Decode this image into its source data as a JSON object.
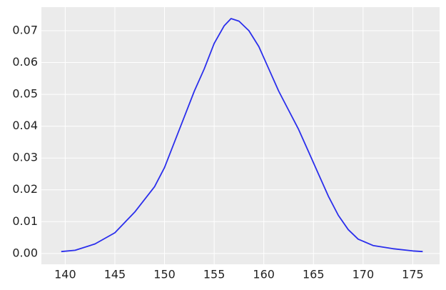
{
  "chart_data": {
    "type": "line",
    "x": [
      139.6,
      141,
      143,
      145,
      147,
      149,
      150,
      151,
      152,
      153,
      154,
      155,
      156,
      156.7,
      157.5,
      158.5,
      159.5,
      160.5,
      161.5,
      162.5,
      163.5,
      164.5,
      165.5,
      166.5,
      167.5,
      168.5,
      169.5,
      171,
      173,
      175,
      176
    ],
    "values": [
      0.0006,
      0.001,
      0.003,
      0.0065,
      0.013,
      0.021,
      0.027,
      0.035,
      0.043,
      0.051,
      0.058,
      0.066,
      0.0715,
      0.0738,
      0.073,
      0.07,
      0.065,
      0.058,
      0.051,
      0.045,
      0.039,
      0.032,
      0.025,
      0.018,
      0.012,
      0.0075,
      0.0045,
      0.0025,
      0.0015,
      0.0008,
      0.0006
    ],
    "color": "#2a2eec",
    "xlim": [
      137.6,
      177.7
    ],
    "xticks": [
      140,
      145,
      150,
      155,
      160,
      165,
      170,
      175
    ],
    "ylim": [
      -0.0034,
      0.0774
    ],
    "yticks": [
      {
        "value": 0,
        "label": "0.00"
      },
      {
        "value": 0.01,
        "label": "0.01"
      },
      {
        "value": 0.02,
        "label": "0.02"
      },
      {
        "value": 0.03,
        "label": "0.03"
      },
      {
        "value": 0.04,
        "label": "0.04"
      },
      {
        "value": 0.05,
        "label": "0.05"
      },
      {
        "value": 0.06,
        "label": "0.06"
      },
      {
        "value": 0.07,
        "label": "0.07"
      }
    ],
    "grid": true
  }
}
